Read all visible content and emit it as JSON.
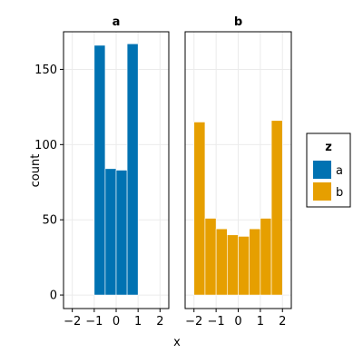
{
  "chart_data": {
    "type": "bar",
    "xlabel": "x",
    "ylabel": "count",
    "xlim": [
      -2.4,
      2.4
    ],
    "ylim": [
      -9,
      175
    ],
    "xticks": [
      -2,
      -1,
      0,
      1,
      2
    ],
    "xtick_labels": [
      "−2",
      "−1",
      "0",
      "1",
      "2"
    ],
    "yticks": [
      0,
      50,
      100,
      150
    ],
    "ytick_labels": [
      "0",
      "50",
      "100",
      "150"
    ],
    "grid": true,
    "panels": [
      {
        "title": "a",
        "series": "a",
        "bins": [
          {
            "x0": -1.0,
            "x1": -0.5,
            "count": 166
          },
          {
            "x0": -0.5,
            "x1": 0.0,
            "count": 84
          },
          {
            "x0": 0.0,
            "x1": 0.5,
            "count": 83
          },
          {
            "x0": 0.5,
            "x1": 1.0,
            "count": 167
          }
        ]
      },
      {
        "title": "b",
        "series": "b",
        "bins": [
          {
            "x0": -2.0,
            "x1": -1.5,
            "count": 115
          },
          {
            "x0": -1.5,
            "x1": -1.0,
            "count": 51
          },
          {
            "x0": -1.0,
            "x1": -0.5,
            "count": 44
          },
          {
            "x0": -0.5,
            "x1": 0.0,
            "count": 40
          },
          {
            "x0": 0.0,
            "x1": 0.5,
            "count": 39
          },
          {
            "x0": 0.5,
            "x1": 1.0,
            "count": 44
          },
          {
            "x0": 1.0,
            "x1": 1.5,
            "count": 51
          },
          {
            "x0": 1.5,
            "x1": 2.0,
            "count": 116
          }
        ]
      }
    ],
    "legend": {
      "title": "z",
      "placement": "right",
      "entries": [
        {
          "label": "a",
          "color": "#0072B2"
        },
        {
          "label": "b",
          "color": "#E69F00"
        }
      ]
    }
  }
}
